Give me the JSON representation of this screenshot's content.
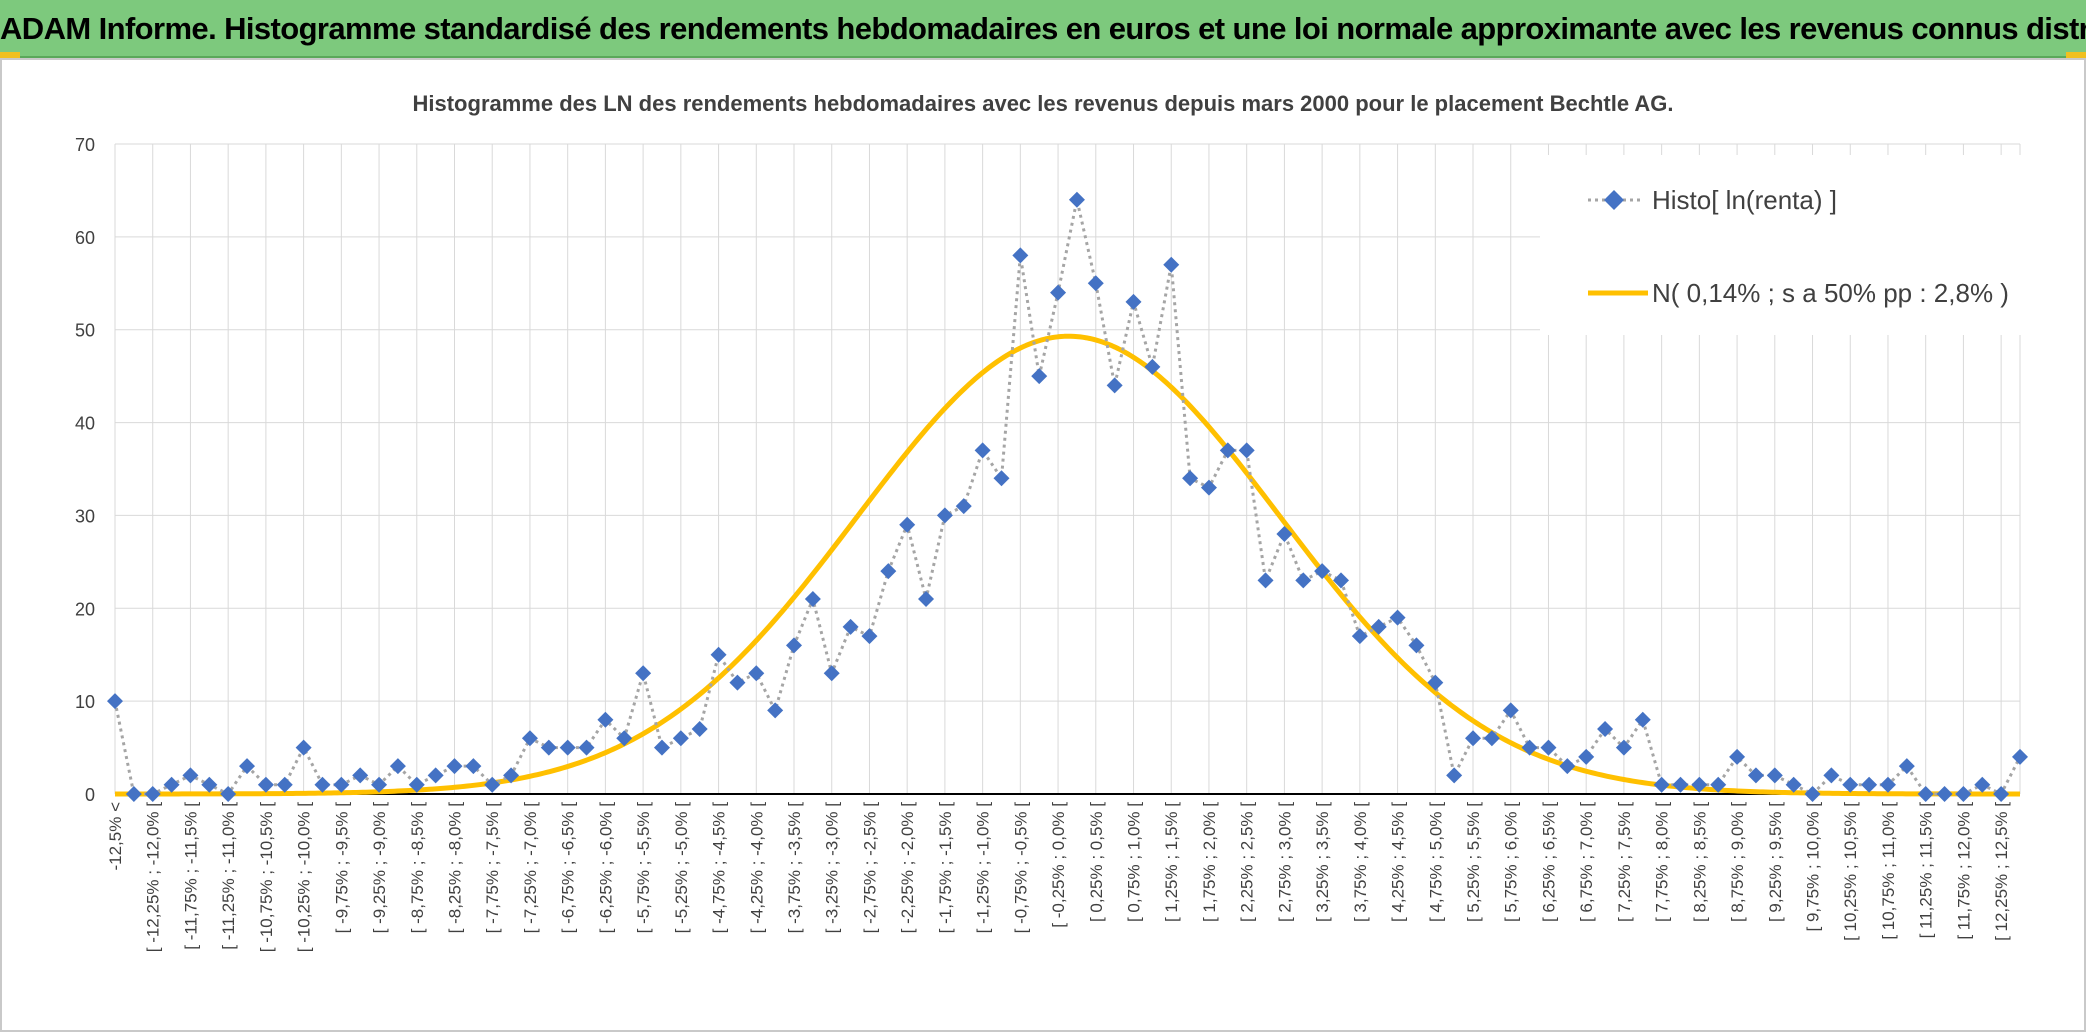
{
  "header": {
    "title": "ADAM Informe. Histogramme standardisé des rendements hebdomadaires en euros et une loi normale approximante avec les revenus connus distribués"
  },
  "colors": {
    "header_bg": "#7dc97d",
    "histo": "#4472c4",
    "histo_line": "#a5a5a5",
    "normal": "#ffc000",
    "grid": "#d9d9d9"
  },
  "chart_data": {
    "type": "line",
    "title": "Histogramme des LN des rendements hebdomadaires avec les revenus depuis mars 2000 pour le placement Bechtle AG.",
    "xlabel": "",
    "ylabel": "",
    "ylim": [
      0,
      70
    ],
    "yticks": [
      0,
      10,
      20,
      30,
      40,
      50,
      60,
      70
    ],
    "grid": true,
    "legend": "top-right",
    "x_tick_labels": [
      "-12,5% <",
      "[ -12,25% ; -12,0% [",
      "[ -11,75% ; -11,5% [",
      "[ -11,25% ; -11,0% [",
      "[ -10,75% ; -10,5% [",
      "[ -10,25% ; -10,0% [",
      "[ -9,75% ; -9,5% [",
      "[ -9,25% ; -9,0% [",
      "[ -8,75% ; -8,5% [",
      "[ -8,25% ; -8,0% [",
      "[ -7,75% ; -7,5% [",
      "[ -7,25% ; -7,0% [",
      "[ -6,75% ; -6,5% [",
      "[ -6,25% ; -6,0% [",
      "[ -5,75% ; -5,5% [",
      "[ -5,25% ; -5,0% [",
      "[ -4,75% ; -4,5% [",
      "[ -4,25% ; -4,0% [",
      "[ -3,75% ; -3,5% [",
      "[ -3,25% ; -3,0% [",
      "[ -2,75% ; -2,5% [",
      "[ -2,25% ; -2,0% [",
      "[ -1,75% ; -1,5% [",
      "[ -1,25% ; -1,0% [",
      "[ -0,75% ; -0,5% [",
      "[ -0,25% ; 0,0% [",
      "[ 0,25% ; 0,5% [",
      "[ 0,75% ; 1,0% [",
      "[ 1,25% ; 1,5% [",
      "[ 1,75% ; 2,0% [",
      "[ 2,25% ; 2,5% [",
      "[ 2,75% ; 3,0% [",
      "[ 3,25% ; 3,5% [",
      "[ 3,75% ; 4,0% [",
      "[ 4,25% ; 4,5% [",
      "[ 4,75% ; 5,0% [",
      "[ 5,25% ; 5,5% [",
      "[ 5,75% ; 6,0% [",
      "[ 6,25% ; 6,5% [",
      "[ 6,75% ; 7,0% [",
      "[ 7,25% ; 7,5% [",
      "[ 7,75% ; 8,0% [",
      "[ 8,25% ; 8,5% [",
      "[ 8,75% ; 9,0% [",
      "[ 9,25% ; 9,5% [",
      "[ 9,75% ; 10,0% [",
      "[ 10,25% ; 10,5% [",
      "[ 10,75% ; 11,0% [",
      "[ 11,25% ; 11,5% [",
      "[ 11,75% ; 12,0% [",
      "[ 12,25% ; 12,5% ["
    ],
    "series": [
      {
        "name": "Histo[ ln(renta) ]",
        "values": [
          10,
          0,
          0,
          1,
          2,
          1,
          0,
          3,
          1,
          1,
          5,
          1,
          1,
          2,
          1,
          3,
          1,
          2,
          3,
          3,
          1,
          2,
          6,
          5,
          5,
          5,
          8,
          6,
          13,
          5,
          6,
          7,
          15,
          12,
          13,
          9,
          16,
          21,
          13,
          18,
          17,
          24,
          29,
          21,
          30,
          31,
          37,
          34,
          58,
          45,
          54,
          64,
          55,
          44,
          53,
          46,
          57,
          34,
          33,
          37,
          37,
          23,
          28,
          23,
          24,
          23,
          17,
          18,
          19,
          16,
          12,
          2,
          6,
          6,
          9,
          5,
          5,
          3,
          4,
          7,
          5,
          8,
          1,
          1,
          1,
          1,
          4,
          2,
          2,
          1,
          0,
          2,
          1,
          1,
          1,
          3,
          0,
          0,
          0,
          1,
          0,
          4
        ]
      },
      {
        "name": "N( 0,14% ; s a 50% pp : 2,8% )",
        "mean_percent": 0.14,
        "sd_percent": 2.8,
        "peak_value": 49.3,
        "x_min_percent": -12.5,
        "x_step_percent": 0.25
      }
    ]
  }
}
